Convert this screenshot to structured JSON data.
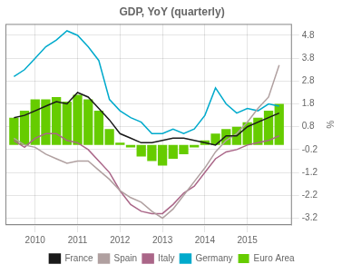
{
  "chart_data": {
    "type": "line",
    "title": "GDP, YoY (quarterly)",
    "ylabel": "%",
    "x": [
      2009.5,
      2009.75,
      2010.0,
      2010.25,
      2010.5,
      2010.75,
      2011.0,
      2011.25,
      2011.5,
      2011.75,
      2012.0,
      2012.25,
      2012.5,
      2012.75,
      2013.0,
      2013.25,
      2013.5,
      2013.75,
      2014.0,
      2014.25,
      2014.5,
      2014.75,
      2015.0,
      2015.25,
      2015.5,
      2015.75
    ],
    "series": [
      {
        "name": "France",
        "type": "line",
        "color": "#1a1a1a",
        "values": [
          1.2,
          1.3,
          1.5,
          1.7,
          1.9,
          1.8,
          2.3,
          2.1,
          1.6,
          1.1,
          0.5,
          0.3,
          0.1,
          0.1,
          0.2,
          0.3,
          0.3,
          0.2,
          0.1,
          0.0,
          0.4,
          0.4,
          0.8,
          1.0,
          1.2,
          1.4
        ]
      },
      {
        "name": "Spain",
        "type": "line",
        "color": "#b0a0a0",
        "values": [
          0.3,
          0.0,
          -0.1,
          -0.4,
          -0.6,
          -0.8,
          -0.7,
          -0.7,
          -1.1,
          -1.5,
          -2.0,
          -2.3,
          -2.5,
          -2.9,
          -3.2,
          -2.8,
          -2.2,
          -1.6,
          -1.0,
          -0.3,
          0.2,
          0.5,
          1.0,
          1.6,
          2.1,
          3.5
        ]
      },
      {
        "name": "Italy",
        "type": "line",
        "color": "#aa6688",
        "values": [
          0.2,
          -0.1,
          0.3,
          0.5,
          0.5,
          0.2,
          0.1,
          -0.2,
          -0.7,
          -1.2,
          -2.0,
          -2.6,
          -2.9,
          -3.0,
          -3.0,
          -2.6,
          -2.1,
          -1.8,
          -1.2,
          -0.6,
          -0.3,
          -0.2,
          0.0,
          0.1,
          0.2,
          0.4
        ]
      },
      {
        "name": "Germany",
        "type": "line",
        "color": "#00aacc",
        "values": [
          3.0,
          3.3,
          3.8,
          4.3,
          4.6,
          5.0,
          4.8,
          4.3,
          3.7,
          2.0,
          1.5,
          1.2,
          1.0,
          0.5,
          0.5,
          0.7,
          0.5,
          0.7,
          1.3,
          2.5,
          1.8,
          1.4,
          1.6,
          1.5,
          1.8,
          1.7
        ]
      },
      {
        "name": "Euro Area",
        "type": "bar",
        "color": "#66cc00",
        "values": [
          1.2,
          1.5,
          2.0,
          2.0,
          2.1,
          1.9,
          2.2,
          2.0,
          1.5,
          0.7,
          0.1,
          -0.1,
          -0.5,
          -0.7,
          -0.9,
          -0.6,
          -0.4,
          -0.1,
          0.2,
          0.5,
          0.7,
          0.8,
          1.0,
          1.2,
          1.5,
          1.8
        ]
      }
    ],
    "xlim": [
      2009.3,
      2016.05
    ],
    "xticks": [
      2010,
      2011,
      2012,
      2013,
      2014,
      2015
    ],
    "ylim": [
      -3.5,
      5.3
    ],
    "yticks": [
      -3.2,
      -2.2,
      -1.2,
      -0.2,
      0.8,
      1.8,
      2.8,
      3.8,
      4.8
    ],
    "grid": true,
    "legend": "bottom"
  }
}
